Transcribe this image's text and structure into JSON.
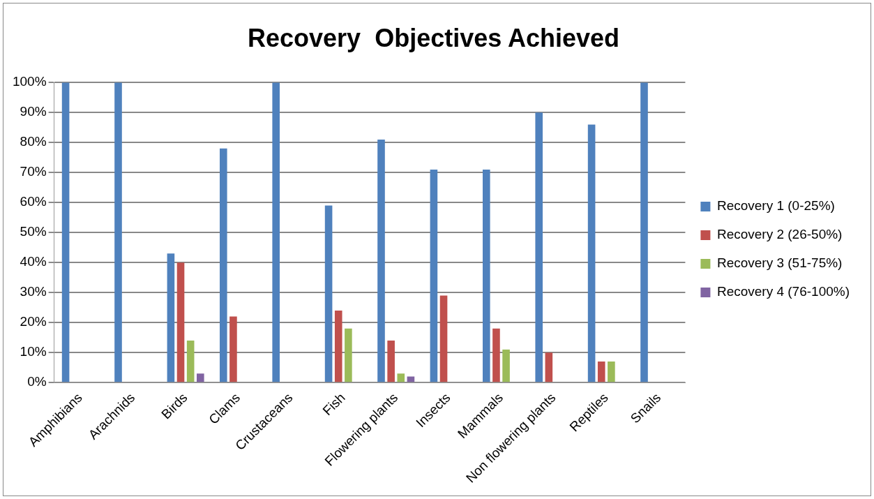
{
  "chart_data": {
    "type": "bar",
    "title": "Recovery  Objectives Achieved",
    "categories": [
      "Amphibians",
      "Arachnids",
      "Birds",
      "Clams",
      "Crustaceans",
      "Fish",
      "Flowering plants",
      "Insects",
      "Mammals",
      "Non flowering plants",
      "Reptiles",
      "Snails"
    ],
    "series": [
      {
        "name": "Recovery 1 (0-25%)",
        "color": "#4f81bd",
        "values": [
          100,
          100,
          43,
          78,
          100,
          59,
          81,
          71,
          71,
          90,
          86,
          100
        ]
      },
      {
        "name": "Recovery 2 (26-50%)",
        "color": "#c0504d",
        "values": [
          0,
          0,
          40,
          22,
          0,
          24,
          14,
          29,
          18,
          10,
          7,
          0
        ]
      },
      {
        "name": "Recovery 3 (51-75%)",
        "color": "#9bbb59",
        "values": [
          0,
          0,
          14,
          0,
          0,
          18,
          3,
          0,
          11,
          0,
          7,
          0
        ]
      },
      {
        "name": "Recovery 4 (76-100%)",
        "color": "#8064a2",
        "values": [
          0,
          0,
          3,
          0,
          0,
          0,
          2,
          0,
          0,
          0,
          0,
          0
        ]
      }
    ],
    "ylim": [
      0,
      100
    ],
    "yticks": [
      {
        "value": 0,
        "label": "0%"
      },
      {
        "value": 10,
        "label": "10%"
      },
      {
        "value": 20,
        "label": "20%"
      },
      {
        "value": 30,
        "label": "30%"
      },
      {
        "value": 40,
        "label": "40%"
      },
      {
        "value": 50,
        "label": "50%"
      },
      {
        "value": 60,
        "label": "60%"
      },
      {
        "value": 70,
        "label": "70%"
      },
      {
        "value": 80,
        "label": "80%"
      },
      {
        "value": 90,
        "label": "90%"
      },
      {
        "value": 100,
        "label": "100%"
      }
    ],
    "grid": "y",
    "legend": "right"
  }
}
